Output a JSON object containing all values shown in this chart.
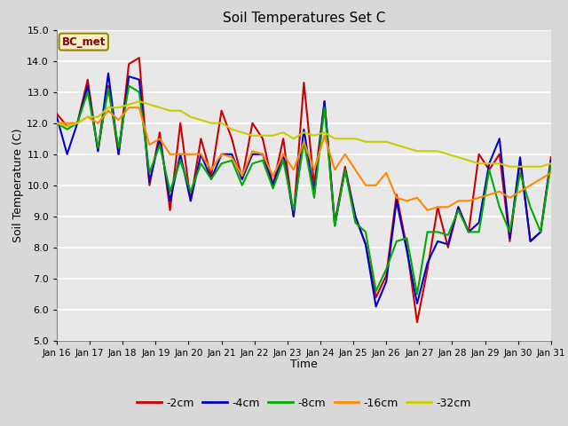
{
  "title": "Soil Temperatures Set C",
  "xlabel": "Time",
  "ylabel": "Soil Temperature (C)",
  "ylim": [
    5.0,
    15.0
  ],
  "yticks": [
    5.0,
    6.0,
    7.0,
    8.0,
    9.0,
    10.0,
    11.0,
    12.0,
    13.0,
    14.0,
    15.0
  ],
  "bg_color": "#d8d8d8",
  "plot_bg": "#e8e8e8",
  "annotation_text": "BC_met",
  "annotation_bg": "#f5f0c8",
  "annotation_border": "#9a8600",
  "annotation_text_color": "#8b0000",
  "colors": {
    "-2cm": "#cc0000",
    "-4cm": "#0000cc",
    "-8cm": "#00aa00",
    "-16cm": "#ff8800",
    "-32cm": "#cccc00"
  },
  "line_width": 1.5,
  "x_labels": [
    "Jan 16",
    "Jan 17",
    "Jan 18",
    "Jan 19",
    "Jan 20",
    "Jan 21",
    "Jan 22",
    "Jan 23",
    "Jan 24",
    "Jan 25",
    "Jan 26",
    "Jan 27",
    "Jan 28",
    "Jan 29",
    "Jan 30",
    "Jan 31"
  ],
  "series": {
    "-2cm": [
      12.3,
      11.9,
      12.0,
      13.4,
      11.1,
      13.2,
      11.0,
      13.9,
      14.1,
      10.0,
      11.7,
      9.2,
      12.0,
      9.5,
      11.5,
      10.3,
      12.4,
      11.5,
      10.2,
      12.0,
      11.5,
      10.0,
      11.5,
      9.0,
      13.3,
      10.0,
      12.7,
      8.8,
      10.6,
      9.0,
      8.1,
      6.4,
      7.1,
      9.7,
      8.0,
      5.6,
      7.3,
      9.3,
      8.0,
      9.3,
      8.5,
      11.0,
      10.5,
      11.0,
      8.2,
      10.8,
      8.2,
      8.5,
      10.9
    ],
    "-4cm": [
      12.2,
      11.0,
      12.0,
      13.2,
      11.1,
      13.6,
      11.0,
      13.5,
      13.4,
      10.1,
      11.5,
      9.5,
      11.0,
      9.5,
      11.0,
      10.2,
      11.0,
      11.0,
      10.2,
      11.0,
      11.0,
      10.0,
      11.0,
      9.0,
      11.8,
      9.7,
      12.7,
      8.7,
      10.5,
      9.0,
      8.1,
      6.1,
      6.9,
      9.5,
      7.9,
      6.2,
      7.5,
      8.2,
      8.1,
      9.3,
      8.5,
      8.8,
      10.7,
      11.5,
      8.3,
      10.9,
      8.2,
      8.5,
      10.8
    ],
    "-8cm": [
      12.0,
      11.8,
      12.0,
      13.0,
      11.2,
      13.1,
      11.2,
      13.2,
      13.0,
      10.4,
      11.3,
      9.8,
      10.8,
      9.8,
      10.7,
      10.2,
      10.7,
      10.8,
      10.0,
      10.7,
      10.8,
      9.9,
      10.8,
      9.2,
      11.4,
      9.6,
      12.5,
      8.7,
      10.5,
      8.8,
      8.5,
      6.6,
      7.3,
      8.2,
      8.3,
      6.5,
      8.5,
      8.5,
      8.4,
      9.2,
      8.5,
      8.5,
      10.5,
      9.3,
      8.5,
      10.4,
      9.3,
      8.5,
      10.7
    ],
    "-16cm": [
      12.0,
      12.0,
      12.0,
      12.2,
      12.0,
      12.4,
      12.1,
      12.5,
      12.5,
      11.3,
      11.5,
      11.0,
      11.0,
      11.0,
      11.0,
      10.5,
      11.0,
      10.9,
      10.3,
      11.1,
      11.0,
      10.3,
      11.0,
      10.5,
      11.4,
      10.5,
      11.6,
      10.5,
      11.0,
      10.5,
      10.0,
      10.0,
      10.4,
      9.6,
      9.5,
      9.6,
      9.2,
      9.3,
      9.3,
      9.5,
      9.5,
      9.6,
      9.7,
      9.8,
      9.6,
      9.8,
      10.0,
      10.2,
      10.4
    ],
    "-32cm": [
      12.0,
      11.9,
      12.0,
      12.2,
      12.2,
      12.5,
      12.5,
      12.6,
      12.7,
      12.6,
      12.5,
      12.4,
      12.4,
      12.2,
      12.1,
      12.0,
      12.0,
      11.8,
      11.7,
      11.6,
      11.6,
      11.6,
      11.7,
      11.5,
      11.7,
      11.6,
      11.7,
      11.5,
      11.5,
      11.5,
      11.4,
      11.4,
      11.4,
      11.3,
      11.2,
      11.1,
      11.1,
      11.1,
      11.0,
      10.9,
      10.8,
      10.7,
      10.7,
      10.7,
      10.6,
      10.6,
      10.6,
      10.6,
      10.7
    ]
  }
}
